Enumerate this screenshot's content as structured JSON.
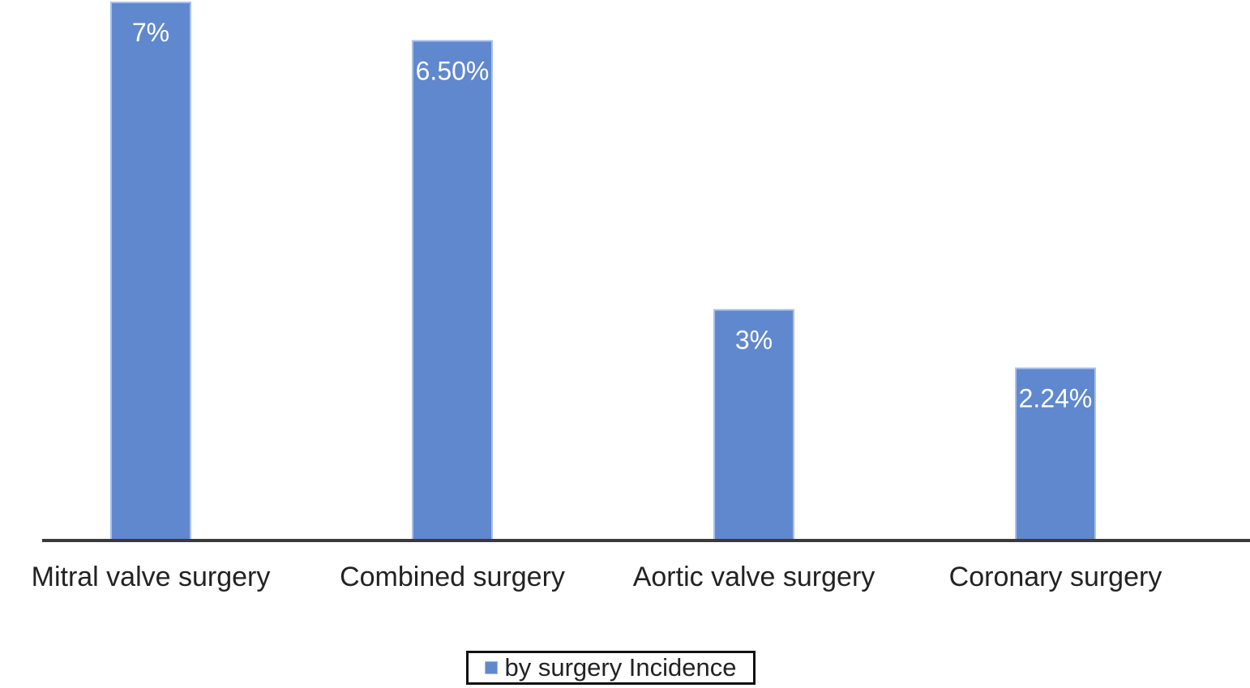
{
  "chart_data": {
    "type": "bar",
    "categories": [
      "Mitral valve surgery",
      "Combined surgery",
      "Aortic valve surgery",
      "Coronary surgery"
    ],
    "series": [
      {
        "name": "by surgery Incidence",
        "values": [
          7,
          6.5,
          3,
          2.24
        ],
        "labels": [
          "7%",
          "6.50%",
          "3%",
          "2.24%"
        ]
      }
    ],
    "title": "",
    "xlabel": "",
    "ylabel": "",
    "ylim": [
      0,
      7
    ],
    "grid": false,
    "legend_position": "bottom",
    "colors": {
      "bar_fill": "#6088ce",
      "bar_edge": "#a9c0ea",
      "axis": "#3a3a3a",
      "data_label": "#ffffff",
      "tick_label": "#222222"
    }
  }
}
